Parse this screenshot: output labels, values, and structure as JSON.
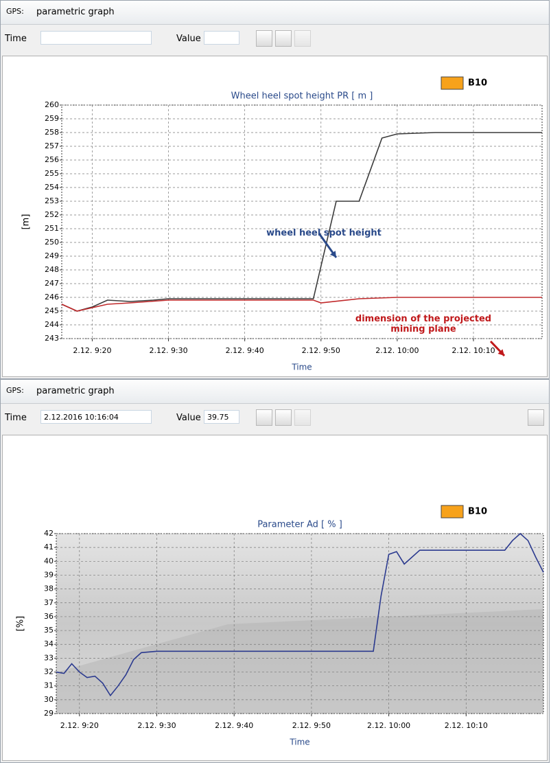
{
  "windows": [
    {
      "title_prefix": "GPS:",
      "title": "parametric graph",
      "time_label": "Time",
      "value_label": "Value"
    },
    {
      "title_prefix": "GPS:",
      "title": "parametric graph",
      "time_label": "Time",
      "time_value": "2.12.2016 10:16:04",
      "value_label": "Value",
      "value_value": "39.75"
    }
  ],
  "chart_data": [
    {
      "type": "line",
      "title": "Wheel heel spot height PR [ m ]",
      "y_label": "[m]",
      "x_label": "Time",
      "legend": {
        "label": "B10",
        "color": "#f7a21b"
      },
      "xlim": [
        "2.12. 9:16",
        "2.12. 10:19"
      ],
      "xticks": [
        "2.12. 9:20",
        "2.12. 9:30",
        "2.12. 9:40",
        "2.12. 9:50",
        "2.12. 10:00",
        "2.12. 10:10"
      ],
      "ylim": [
        243,
        260
      ],
      "yticks": [
        243,
        244,
        245,
        246,
        247,
        248,
        249,
        250,
        251,
        252,
        253,
        254,
        255,
        256,
        257,
        258,
        259,
        260
      ],
      "grid": true,
      "series": [
        {
          "color": "#3a3a3a",
          "x": [
            "2.12. 9:16",
            "2.12. 9:18",
            "2.12. 9:20",
            "2.12. 9:22",
            "2.12. 9:25",
            "2.12. 9:28",
            "2.12. 9:30",
            "2.12. 9:40",
            "2.12. 9:49",
            "2.12. 9:52",
            "2.12. 9:55",
            "2.12. 9:58",
            "2.12. 10:00",
            "2.12. 10:05",
            "2.12. 10:19"
          ],
          "values": [
            245.5,
            245.0,
            245.3,
            245.8,
            245.7,
            245.8,
            245.9,
            245.9,
            245.9,
            253,
            253,
            257.6,
            257.9,
            258,
            258
          ]
        },
        {
          "color": "#c0282a",
          "x": [
            "2.12. 9:16",
            "2.12. 9:18",
            "2.12. 9:22",
            "2.12. 9:25",
            "2.12. 9:30",
            "2.12. 9:49",
            "2.12. 9:50",
            "2.12. 9:55",
            "2.12. 10:00",
            "2.12. 10:19"
          ],
          "values": [
            245.5,
            245.0,
            245.5,
            245.6,
            245.8,
            245.8,
            245.6,
            245.9,
            246,
            246
          ]
        }
      ],
      "annotations": [
        {
          "text": "wheel heel spot height",
          "color": "#2a4a8a"
        },
        {
          "text": "dimension of the projected mining plane",
          "color": "#c0191b"
        }
      ]
    },
    {
      "type": "line",
      "title": "Parameter Ad [ % ]",
      "y_label": "[%]",
      "x_label": "Time",
      "legend": {
        "label": "B10",
        "color": "#f7a21b"
      },
      "xlim": [
        "2.12. 9:17",
        "2.12. 10:20"
      ],
      "xticks": [
        "2.12. 9:20",
        "2.12. 9:30",
        "2.12. 9:40",
        "2.12. 9:50",
        "2.12. 10:00",
        "2.12. 10:10"
      ],
      "ylim": [
        29,
        42
      ],
      "yticks": [
        29,
        30,
        31,
        32,
        33,
        34,
        35,
        36,
        37,
        38,
        39,
        40,
        41,
        42
      ],
      "grid": true,
      "series": [
        {
          "color": "#2b3a8f",
          "x": [
            "2.12. 9:17",
            "2.12. 9:18",
            "2.12. 9:19",
            "2.12. 9:20",
            "2.12. 9:21",
            "2.12. 9:22",
            "2.12. 9:23",
            "2.12. 9:24",
            "2.12. 9:25",
            "2.12. 9:26",
            "2.12. 9:27",
            "2.12. 9:28",
            "2.12. 9:30",
            "2.12. 9:58",
            "2.12. 9:59",
            "2.12. 10:00",
            "2.12. 10:01",
            "2.12. 10:02",
            "2.12. 10:03",
            "2.12. 10:04",
            "2.12. 10:15",
            "2.12. 10:16",
            "2.12. 10:17",
            "2.12. 10:18",
            "2.12. 10:19",
            "2.12. 10:20"
          ],
          "values": [
            32.0,
            31.9,
            32.6,
            32.0,
            31.6,
            31.7,
            31.2,
            30.3,
            31.0,
            31.8,
            32.9,
            33.4,
            33.5,
            33.5,
            37.5,
            40.5,
            40.7,
            39.8,
            40.3,
            40.8,
            40.8,
            41.5,
            42,
            41.5,
            40.3,
            39.2
          ]
        }
      ]
    }
  ]
}
